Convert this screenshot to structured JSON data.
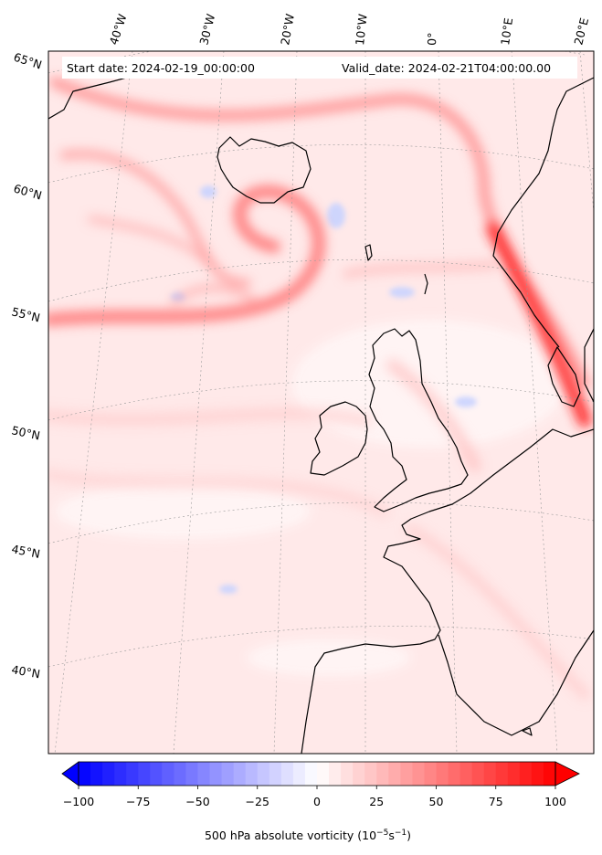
{
  "header": {
    "start_date": "Start date: 2024-02-19_00:00:00",
    "valid_date": "Valid_date: 2024-02-21T04:00:00.00"
  },
  "longitude_labels": [
    "40°W",
    "30°W",
    "20°W",
    "10°W",
    "0°",
    "10°E",
    "20°E"
  ],
  "latitude_labels": [
    "65°N",
    "60°N",
    "55°N",
    "50°N",
    "45°N",
    "40°N"
  ],
  "colorbar": {
    "label": "500 hPa absolute vorticity (10",
    "label_exp1": "−5",
    "label_mid": "s",
    "label_exp2": "−1",
    "label_end": ")",
    "ticks": [
      "−100",
      "−75",
      "−50",
      "−25",
      "0",
      "25",
      "50",
      "75",
      "100"
    ],
    "min": -100,
    "max": 100,
    "colormap": "bwr",
    "color_min": "#0000ff",
    "color_mid": "#ffffff",
    "color_max": "#ff0000"
  },
  "map": {
    "projection": "polar stereographic (North Atlantic / Europe)",
    "gridlines": "dotted",
    "background_color": "#ffeaea",
    "coastline_color": "#000000"
  }
}
